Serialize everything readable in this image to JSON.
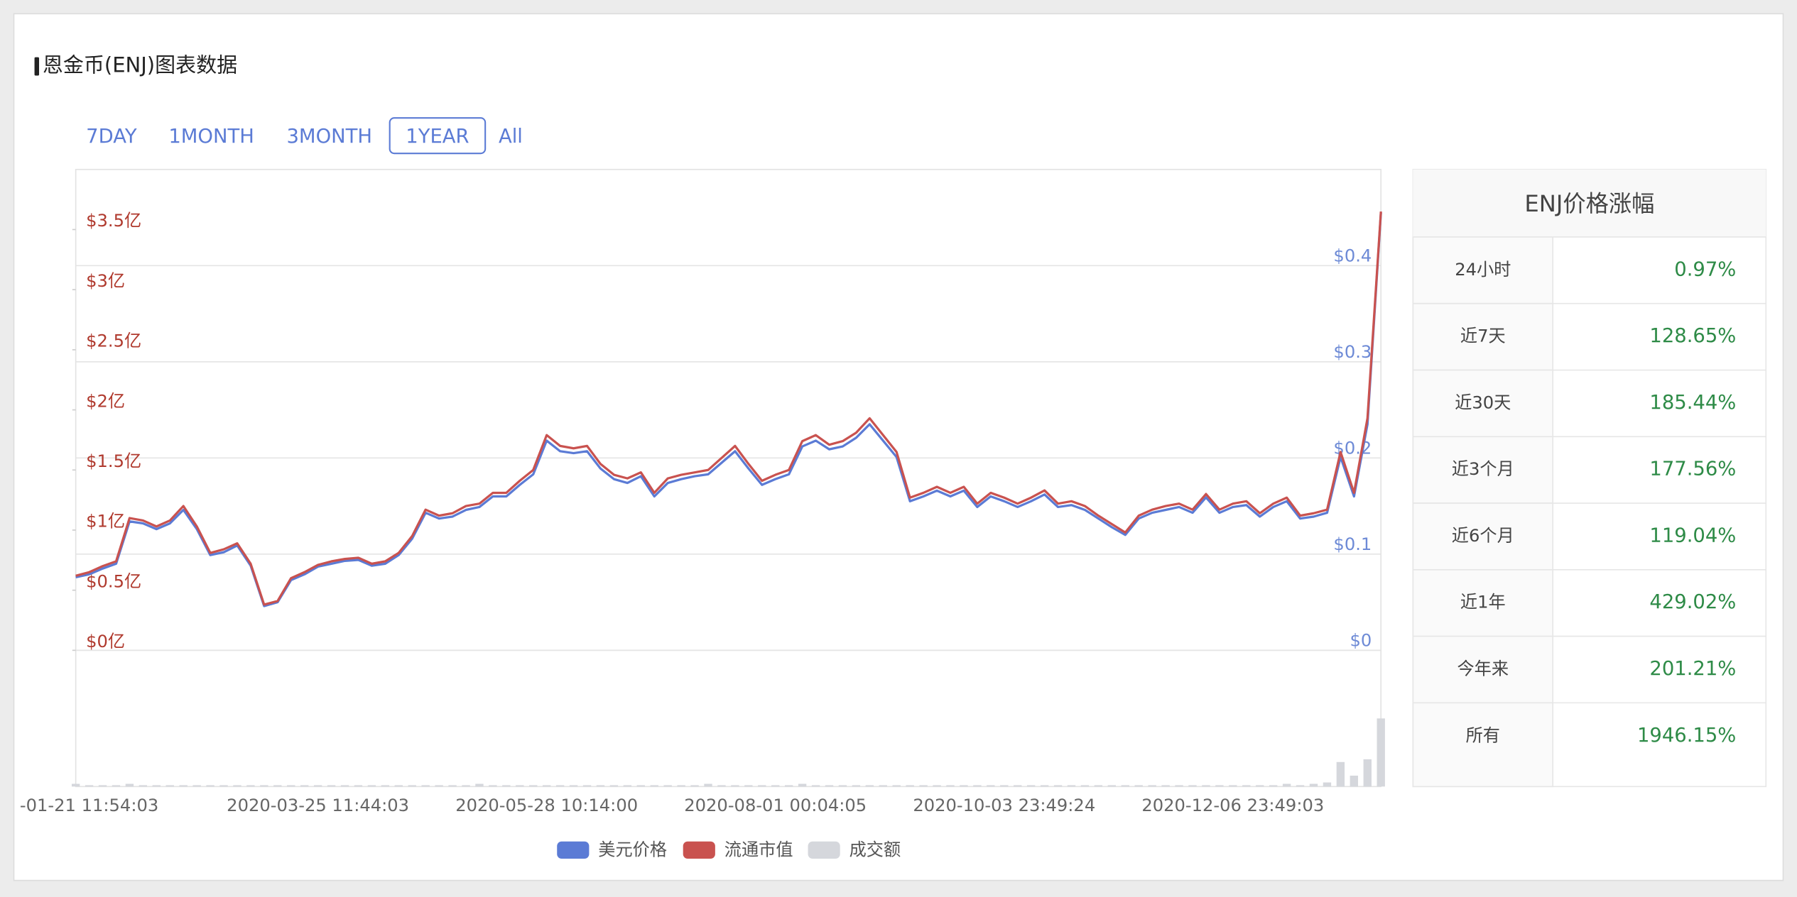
{
  "header": {
    "title": "恩金币(ENJ)图表数据"
  },
  "tabs": [
    "7DAY",
    "1MONTH",
    "3MONTH",
    "1YEAR",
    "All"
  ],
  "active_tab": 3,
  "chart_data": {
    "type": "line",
    "categories": [
      null,
      "-01-21 11:54:03",
      null,
      null,
      null,
      null,
      null,
      null,
      null,
      null,
      null,
      null,
      null,
      null,
      null,
      null,
      null,
      null,
      "2020-03-25 11:44:03",
      null,
      null,
      null,
      null,
      null,
      null,
      null,
      null,
      null,
      null,
      null,
      null,
      null,
      null,
      null,
      null,
      "2020-05-28 10:14:00",
      null,
      null,
      null,
      null,
      null,
      null,
      null,
      null,
      null,
      null,
      null,
      null,
      null,
      null,
      null,
      null,
      "2020-08-01 00:04:05",
      null,
      null,
      null,
      null,
      null,
      null,
      null,
      null,
      null,
      null,
      null,
      null,
      null,
      null,
      null,
      null,
      "2020-10-03 23:49:24",
      null,
      null,
      null,
      null,
      null,
      null,
      null,
      null,
      null,
      null,
      null,
      null,
      null,
      null,
      null,
      null,
      "2020-12-06 23:49:03",
      null,
      null,
      null,
      null,
      null,
      null,
      null,
      null,
      null,
      null,
      null
    ],
    "series": [
      {
        "name": "美元价格",
        "color": "#5b7bd5",
        "axis": "y2",
        "values": [
          0.076,
          0.079,
          0.085,
          0.09,
          0.134,
          0.132,
          0.126,
          0.132,
          0.146,
          0.126,
          0.099,
          0.102,
          0.109,
          0.088,
          0.046,
          0.05,
          0.073,
          0.079,
          0.087,
          0.09,
          0.093,
          0.094,
          0.088,
          0.09,
          0.099,
          0.116,
          0.143,
          0.137,
          0.139,
          0.146,
          0.149,
          0.16,
          0.16,
          0.172,
          0.183,
          0.218,
          0.207,
          0.205,
          0.207,
          0.189,
          0.178,
          0.174,
          0.181,
          0.16,
          0.174,
          0.178,
          0.181,
          0.183,
          0.195,
          0.207,
          0.189,
          0.172,
          0.178,
          0.183,
          0.212,
          0.218,
          0.209,
          0.212,
          0.221,
          0.235,
          0.218,
          0.201,
          0.155,
          0.16,
          0.166,
          0.16,
          0.166,
          0.149,
          0.16,
          0.155,
          0.149,
          0.155,
          0.162,
          0.149,
          0.151,
          0.146,
          0.137,
          0.128,
          0.12,
          0.137,
          0.143,
          0.146,
          0.149,
          0.143,
          0.159,
          0.143,
          0.149,
          0.151,
          0.139,
          0.149,
          0.155,
          0.137,
          0.139,
          0.143,
          0.201,
          0.16,
          0.235,
          0.455
        ]
      },
      {
        "name": "流通市值",
        "color": "#c9524f",
        "axis": "y",
        "values": [
          0.62,
          0.65,
          0.7,
          0.74,
          1.1,
          1.08,
          1.03,
          1.08,
          1.2,
          1.03,
          0.81,
          0.84,
          0.89,
          0.72,
          0.38,
          0.41,
          0.6,
          0.65,
          0.71,
          0.74,
          0.76,
          0.77,
          0.72,
          0.74,
          0.81,
          0.95,
          1.17,
          1.12,
          1.14,
          1.2,
          1.22,
          1.31,
          1.31,
          1.41,
          1.5,
          1.79,
          1.7,
          1.68,
          1.7,
          1.55,
          1.46,
          1.43,
          1.48,
          1.31,
          1.43,
          1.46,
          1.48,
          1.5,
          1.6,
          1.7,
          1.55,
          1.41,
          1.46,
          1.5,
          1.74,
          1.79,
          1.71,
          1.74,
          1.81,
          1.93,
          1.79,
          1.65,
          1.27,
          1.31,
          1.36,
          1.31,
          1.36,
          1.22,
          1.31,
          1.27,
          1.22,
          1.27,
          1.33,
          1.22,
          1.24,
          1.2,
          1.12,
          1.05,
          0.98,
          1.12,
          1.17,
          1.2,
          1.22,
          1.17,
          1.3,
          1.17,
          1.22,
          1.24,
          1.14,
          1.22,
          1.27,
          1.12,
          1.14,
          1.17,
          1.65,
          1.31,
          1.93,
          3.65
        ]
      },
      {
        "name": "成交额",
        "color": "#d5d7dc",
        "axis": "y3",
        "values": [
          2,
          1,
          1,
          1,
          2,
          1,
          1,
          1,
          1,
          1,
          1,
          1,
          1,
          1,
          1,
          1,
          1,
          1,
          1,
          1,
          1,
          1,
          1,
          1,
          1,
          1,
          1,
          1,
          1,
          1,
          2,
          1,
          1,
          1,
          1,
          1,
          1,
          1,
          1,
          1,
          1,
          1,
          1,
          1,
          1,
          1,
          1,
          2,
          1,
          1,
          1,
          1,
          1,
          1,
          2,
          1,
          1,
          1,
          1,
          1,
          1,
          1,
          1,
          1,
          1,
          1,
          1,
          1,
          1,
          1,
          1,
          1,
          1,
          1,
          1,
          1,
          1,
          1,
          1,
          1,
          1,
          1,
          1,
          1,
          1,
          1,
          1,
          1,
          1,
          1,
          2,
          1,
          2,
          3,
          18,
          8,
          20,
          50
        ]
      }
    ],
    "ylim": [
      0,
      4
    ],
    "yticks": [
      {
        "value": 0,
        "label": "$0亿"
      },
      {
        "value": 0.5,
        "label": "$0.5亿"
      },
      {
        "value": 1,
        "label": "$1亿"
      },
      {
        "value": 1.5,
        "label": "$1.5亿"
      },
      {
        "value": 2,
        "label": "$2亿"
      },
      {
        "value": 2.5,
        "label": "$2.5亿"
      },
      {
        "value": 3,
        "label": "$3亿"
      },
      {
        "value": 3.5,
        "label": "$3.5亿"
      }
    ],
    "y2lim": [
      0,
      0.5
    ],
    "y2ticks": [
      {
        "value": 0,
        "label": "$0"
      },
      {
        "value": 0.1,
        "label": "$0.1"
      },
      {
        "value": 0.2,
        "label": "$0.2"
      },
      {
        "value": 0.3,
        "label": "$0.3"
      },
      {
        "value": 0.4,
        "label": "$0.4"
      }
    ],
    "y3lim": [
      0,
      100
    ],
    "grid": true,
    "legend": "bottom"
  },
  "table": {
    "title": "ENJ价格涨幅",
    "rows": [
      [
        "24小时",
        "0.97%"
      ],
      [
        "近7天",
        "128.65%"
      ],
      [
        "近30天",
        "185.44%"
      ],
      [
        "近3个月",
        "177.56%"
      ],
      [
        "近6个月",
        "119.04%"
      ],
      [
        "近1年",
        "429.02%"
      ],
      [
        "今年来",
        "201.21%"
      ],
      [
        "所有",
        "1946.15%"
      ]
    ]
  }
}
